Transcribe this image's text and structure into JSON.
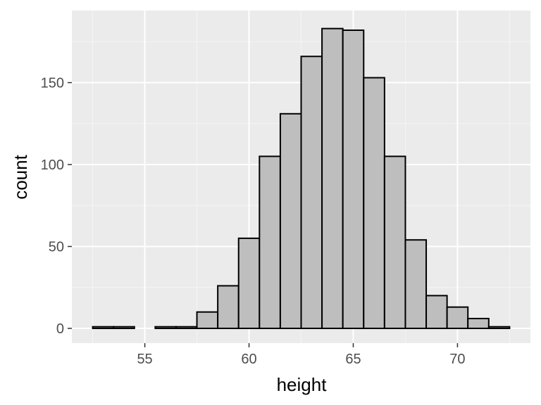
{
  "chart_data": {
    "type": "bar",
    "xlabel": "height",
    "ylabel": "count",
    "xlim": [
      51.5,
      73.5
    ],
    "ylim": [
      -9,
      194
    ],
    "x_ticks": [
      55,
      60,
      65,
      70
    ],
    "x_tick_labels": [
      "55",
      "60",
      "65",
      "70"
    ],
    "y_ticks": [
      0,
      50,
      100,
      150
    ],
    "y_tick_labels": [
      "0",
      "50",
      "100",
      "150"
    ],
    "x_minor_ticks": [
      52.5,
      57.5,
      62.5,
      67.5,
      72.5
    ],
    "y_minor_ticks": [
      25,
      75,
      125,
      175
    ],
    "bin_width": 1,
    "bins": [
      {
        "x0": 52.5,
        "x1": 53.5,
        "count": 1
      },
      {
        "x0": 53.5,
        "x1": 54.5,
        "count": 1
      },
      {
        "x0": 54.5,
        "x1": 55.5,
        "count": 0
      },
      {
        "x0": 55.5,
        "x1": 56.5,
        "count": 1
      },
      {
        "x0": 56.5,
        "x1": 57.5,
        "count": 1
      },
      {
        "x0": 57.5,
        "x1": 58.5,
        "count": 10
      },
      {
        "x0": 58.5,
        "x1": 59.5,
        "count": 26
      },
      {
        "x0": 59.5,
        "x1": 60.5,
        "count": 55
      },
      {
        "x0": 60.5,
        "x1": 61.5,
        "count": 105
      },
      {
        "x0": 61.5,
        "x1": 62.5,
        "count": 131
      },
      {
        "x0": 62.5,
        "x1": 63.5,
        "count": 166
      },
      {
        "x0": 63.5,
        "x1": 64.5,
        "count": 183
      },
      {
        "x0": 64.5,
        "x1": 65.5,
        "count": 182
      },
      {
        "x0": 65.5,
        "x1": 66.5,
        "count": 153
      },
      {
        "x0": 66.5,
        "x1": 67.5,
        "count": 105
      },
      {
        "x0": 67.5,
        "x1": 68.5,
        "count": 54
      },
      {
        "x0": 68.5,
        "x1": 69.5,
        "count": 20
      },
      {
        "x0": 69.5,
        "x1": 70.5,
        "count": 13
      },
      {
        "x0": 70.5,
        "x1": 71.5,
        "count": 6
      },
      {
        "x0": 71.5,
        "x1": 72.5,
        "count": 1
      }
    ],
    "grid": true,
    "colors": {
      "panel_background": "#ebebeb",
      "grid_major": "#ffffff",
      "grid_minor": "#f5f5f5",
      "bar_fill": "#bebebe",
      "bar_stroke": "#000000",
      "tick_mark": "#333333",
      "tick_label": "#4d4d4d",
      "axis_title": "#000000"
    }
  }
}
